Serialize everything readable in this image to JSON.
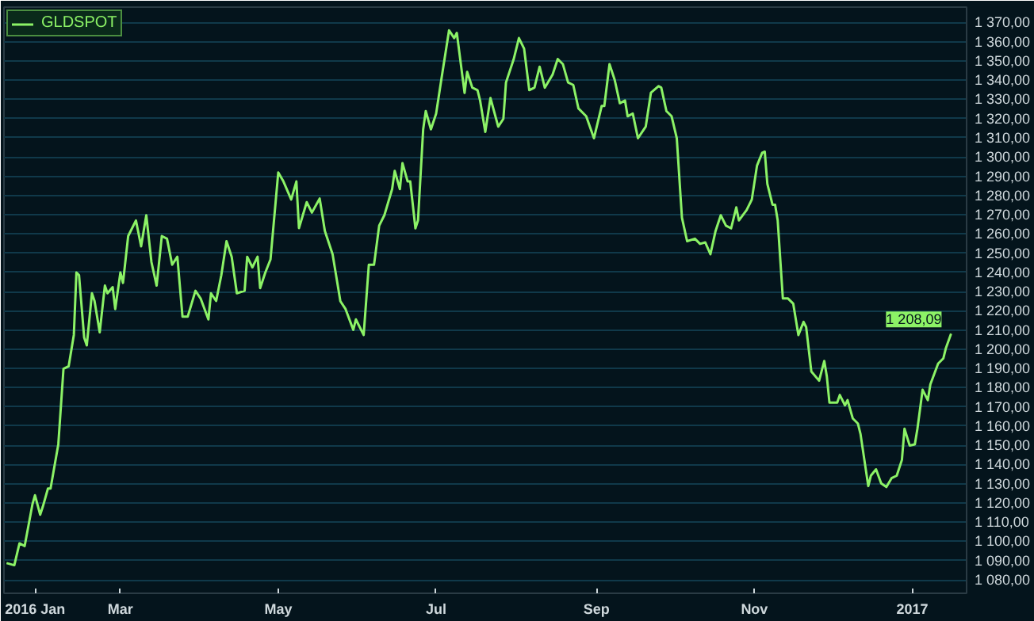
{
  "chart_data": {
    "type": "line",
    "x": [
      "2016-01-17",
      "2016-01-20",
      "2016-01-22",
      "2016-01-24",
      "2016-01-27",
      "2016-01-28",
      "2016-01-30",
      "2016-01-31",
      "2016-02-02",
      "2016-02-03",
      "2016-02-06",
      "2016-02-08",
      "2016-02-10",
      "2016-02-12",
      "2016-02-13",
      "2016-02-14",
      "2016-02-16",
      "2016-02-17",
      "2016-02-19",
      "2016-02-20",
      "2016-02-22",
      "2016-02-24",
      "2016-02-25",
      "2016-02-27",
      "2016-02-28",
      "2016-03-01",
      "2016-03-02",
      "2016-03-04",
      "2016-03-07",
      "2016-03-09",
      "2016-03-11",
      "2016-03-13",
      "2016-03-15",
      "2016-03-17",
      "2016-03-19",
      "2016-03-21",
      "2016-03-23",
      "2016-03-25",
      "2016-03-27",
      "2016-03-30",
      "2016-04-01",
      "2016-04-04",
      "2016-04-05",
      "2016-04-07",
      "2016-04-09",
      "2016-04-11",
      "2016-04-13",
      "2016-04-15",
      "2016-04-18",
      "2016-04-19",
      "2016-04-21",
      "2016-04-23",
      "2016-04-24",
      "2016-04-26",
      "2016-04-28",
      "2016-05-01",
      "2016-05-03",
      "2016-05-06",
      "2016-05-08",
      "2016-05-09",
      "2016-05-12",
      "2016-05-14",
      "2016-05-17",
      "2016-05-19",
      "2016-05-22",
      "2016-05-25",
      "2016-05-27",
      "2016-05-30",
      "2016-05-31",
      "2016-06-03",
      "2016-06-05",
      "2016-06-07",
      "2016-06-09",
      "2016-06-11",
      "2016-06-14",
      "2016-06-15",
      "2016-06-17",
      "2016-06-18",
      "2016-06-20",
      "2016-06-21",
      "2016-06-23",
      "2016-06-24",
      "2016-06-26",
      "2016-06-27",
      "2016-06-29",
      "2016-07-01",
      "2016-07-03",
      "2016-07-06",
      "2016-07-08",
      "2016-07-09",
      "2016-07-12",
      "2016-07-13",
      "2016-07-15",
      "2016-07-17",
      "2016-07-18",
      "2016-07-20",
      "2016-07-22",
      "2016-07-25",
      "2016-07-27",
      "2016-07-28",
      "2016-07-31",
      "2016-08-02",
      "2016-08-04",
      "2016-08-06",
      "2016-08-08",
      "2016-08-10",
      "2016-08-12",
      "2016-08-15",
      "2016-08-17",
      "2016-08-19",
      "2016-08-21",
      "2016-08-23",
      "2016-08-25",
      "2016-08-28",
      "2016-08-31",
      "2016-09-03",
      "2016-09-04",
      "2016-09-06",
      "2016-09-08",
      "2016-09-10",
      "2016-09-12",
      "2016-09-13",
      "2016-09-15",
      "2016-09-17",
      "2016-09-20",
      "2016-09-22",
      "2016-09-25",
      "2016-09-26",
      "2016-09-28",
      "2016-09-30",
      "2016-10-02",
      "2016-10-04",
      "2016-10-06",
      "2016-10-09",
      "2016-10-11",
      "2016-10-13",
      "2016-10-15",
      "2016-10-17",
      "2016-10-19",
      "2016-10-21",
      "2016-10-23",
      "2016-10-25",
      "2016-10-26",
      "2016-10-29",
      "2016-10-31",
      "2016-11-02",
      "2016-11-04",
      "2016-11-05",
      "2016-11-06",
      "2016-11-08",
      "2016-11-09",
      "2016-11-10",
      "2016-11-12",
      "2016-11-14",
      "2016-11-16",
      "2016-11-18",
      "2016-11-20",
      "2016-11-21",
      "2016-11-23",
      "2016-11-26",
      "2016-11-28",
      "2016-11-29",
      "2016-11-30",
      "2016-12-03",
      "2016-12-04",
      "2016-12-06",
      "2016-12-07",
      "2016-12-09",
      "2016-12-11",
      "2016-12-12",
      "2016-12-15",
      "2016-12-16",
      "2016-12-18",
      "2016-12-20",
      "2016-12-22",
      "2016-12-24",
      "2016-12-26",
      "2016-12-28",
      "2016-12-29",
      "2016-12-31",
      "2017-01-02",
      "2017-01-03",
      "2017-01-05",
      "2017-01-07",
      "2017-01-08",
      "2017-01-11",
      "2017-01-13",
      "2017-01-14",
      "2017-01-16"
    ],
    "series": [
      {
        "name": "GLDSPOT",
        "color": "#8cf266",
        "values": [
          1088.7,
          1087.6,
          1099,
          1097.6,
          1119.3,
          1124,
          1113.9,
          1118,
          1127.5,
          1127.5,
          1150.5,
          1189.8,
          1191.1,
          1207.4,
          1239.9,
          1238.6,
          1206,
          1202,
          1229.1,
          1225.1,
          1208.8,
          1233.1,
          1229.1,
          1232.3,
          1220.9,
          1239.9,
          1234.5,
          1258.9,
          1267,
          1253.5,
          1269.7,
          1245.3,
          1233.1,
          1258.9,
          1257.5,
          1244,
          1248.1,
          1216.9,
          1216.9,
          1230.4,
          1226.4,
          1215.5,
          1229.1,
          1225.1,
          1238.6,
          1256.2,
          1248.1,
          1229.1,
          1230.4,
          1248.1,
          1242.6,
          1248.1,
          1231.8,
          1239.9,
          1246.7,
          1292,
          1287.3,
          1277.9,
          1287.3,
          1263,
          1276.5,
          1271.1,
          1278.4,
          1261.6,
          1249.4,
          1225,
          1220.9,
          1210.1,
          1215.5,
          1207.4,
          1243.9,
          1243.9,
          1264.3,
          1269.7,
          1283.3,
          1292.8,
          1283.3,
          1296.8,
          1287.3,
          1287.3,
          1262.9,
          1267,
          1314.4,
          1323.9,
          1314.4,
          1322.6,
          1340.2,
          1365.9,
          1361.9,
          1364.6,
          1333.4,
          1344.3,
          1336.1,
          1334.8,
          1329.4,
          1313.1,
          1330.7,
          1315.8,
          1319.9,
          1338.8,
          1351,
          1361.9,
          1356.4,
          1334.8,
          1336.1,
          1347,
          1336.1,
          1342.9,
          1351,
          1348.3,
          1338.8,
          1337.5,
          1325.3,
          1321.2,
          1309.8,
          1326.6,
          1326.6,
          1348.3,
          1340.2,
          1328,
          1329.4,
          1321.2,
          1322.6,
          1309.8,
          1315.8,
          1333.4,
          1336.9,
          1336.1,
          1323.9,
          1321.2,
          1309.8,
          1268.4,
          1256.2,
          1257.5,
          1254.8,
          1255.6,
          1249.4,
          1261.6,
          1269.7,
          1264.3,
          1262.9,
          1273.8,
          1267,
          1272.4,
          1277.9,
          1295.5,
          1302.2,
          1302.8,
          1286,
          1275.2,
          1275.2,
          1267,
          1226.4,
          1226.4,
          1223.7,
          1207.4,
          1214.2,
          1211.5,
          1188.4,
          1183.6,
          1193.9,
          1185.7,
          1172.2,
          1172.2,
          1176.2,
          1170.8,
          1173.5,
          1164,
          1161.3,
          1155.9,
          1128.8,
          1134.2,
          1137.5,
          1130.2,
          1128.3,
          1132.9,
          1134.2,
          1142.4,
          1158.6,
          1149.9,
          1150.5,
          1158.6,
          1178.9,
          1173.5,
          1181.7,
          1192.5,
          1195.2,
          1200.6,
          1208.09
        ]
      }
    ],
    "xlim": [
      "2016-01-16",
      "2017-01-22"
    ],
    "xticks": [
      {
        "value": "2016-01-28",
        "label": "2016 Jan"
      },
      {
        "value": "2016-03-01",
        "label": "Mar"
      },
      {
        "value": "2016-05-01",
        "label": "May"
      },
      {
        "value": "2016-07-01",
        "label": "Jul"
      },
      {
        "value": "2016-09-01",
        "label": "Sep"
      },
      {
        "value": "2016-11-01",
        "label": "Nov"
      },
      {
        "value": "2017-01-01",
        "label": "2017"
      }
    ],
    "ylim": [
      1073,
      1378
    ],
    "yticks": [
      {
        "value": 1080,
        "label": "1 080,00"
      },
      {
        "value": 1090,
        "label": "1 090,00"
      },
      {
        "value": 1100,
        "label": "1 100,00"
      },
      {
        "value": 1110,
        "label": "1 110,00"
      },
      {
        "value": 1120,
        "label": "1 120,00"
      },
      {
        "value": 1130,
        "label": "1 130,00"
      },
      {
        "value": 1140,
        "label": "1 140,00"
      },
      {
        "value": 1150,
        "label": "1 150,00"
      },
      {
        "value": 1160,
        "label": "1 160,00"
      },
      {
        "value": 1170,
        "label": "1 170,00"
      },
      {
        "value": 1180,
        "label": "1 180,00"
      },
      {
        "value": 1190,
        "label": "1 190,00"
      },
      {
        "value": 1200,
        "label": "1 200,00"
      },
      {
        "value": 1210,
        "label": "1 210,00"
      },
      {
        "value": 1220,
        "label": "1 220,00"
      },
      {
        "value": 1230,
        "label": "1 230,00"
      },
      {
        "value": 1240,
        "label": "1 240,00"
      },
      {
        "value": 1250,
        "label": "1 250,00"
      },
      {
        "value": 1260,
        "label": "1 260,00"
      },
      {
        "value": 1270,
        "label": "1 270,00"
      },
      {
        "value": 1280,
        "label": "1 280,00"
      },
      {
        "value": 1290,
        "label": "1 290,00"
      },
      {
        "value": 1300,
        "label": "1 300,00"
      },
      {
        "value": 1310,
        "label": "1 310,00"
      },
      {
        "value": 1320,
        "label": "1 320,00"
      },
      {
        "value": 1330,
        "label": "1 330,00"
      },
      {
        "value": 1340,
        "label": "1 340,00"
      },
      {
        "value": 1350,
        "label": "1 350,00"
      },
      {
        "value": 1360,
        "label": "1 360,00"
      },
      {
        "value": 1370,
        "label": "1 370,00"
      }
    ],
    "annotations": [
      {
        "text": "1 208,09",
        "x": "2017-01-16",
        "y": 1208.09
      }
    ],
    "grid": "y",
    "legend": "top left",
    "marker": "none",
    "line_style": "solid"
  }
}
